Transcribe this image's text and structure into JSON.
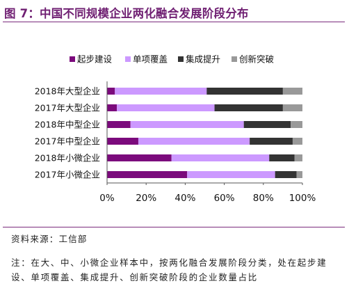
{
  "figure": {
    "title": "图 7：中国不同规模企业两化融合发展阶段分布",
    "source": "资料来源：工信部",
    "note": "注：在大、中、小微企业样本中，按两化融合发展阶段分类，处在起步建设、单项覆盖、集成提升、创新突破阶段的企业数量占比"
  },
  "chart_data": {
    "type": "bar",
    "orientation": "horizontal",
    "stacked": true,
    "percent_stacked": true,
    "categories": [
      "2018年大型企业",
      "2017年大型企业",
      "2018年中型企业",
      "2017年中型企业",
      "2018年小微企业",
      "2017年小微企业"
    ],
    "series": [
      {
        "name": "起步建设",
        "color": "#7b0a7c",
        "values": [
          4,
          5,
          12,
          16,
          33,
          41
        ]
      },
      {
        "name": "单项覆盖",
        "color": "#cc99ff",
        "values": [
          47,
          50,
          58,
          57,
          50,
          45
        ]
      },
      {
        "name": "集成提升",
        "color": "#333333",
        "values": [
          39,
          35,
          24,
          22,
          13,
          11
        ]
      },
      {
        "name": "创新突破",
        "color": "#999999",
        "values": [
          10,
          10,
          6,
          5,
          4,
          3
        ]
      }
    ],
    "xlim": [
      0,
      100
    ],
    "xticks": [
      "0%",
      "20%",
      "40%",
      "60%",
      "80%",
      "100%"
    ],
    "legend_position": "top",
    "grid": false
  }
}
